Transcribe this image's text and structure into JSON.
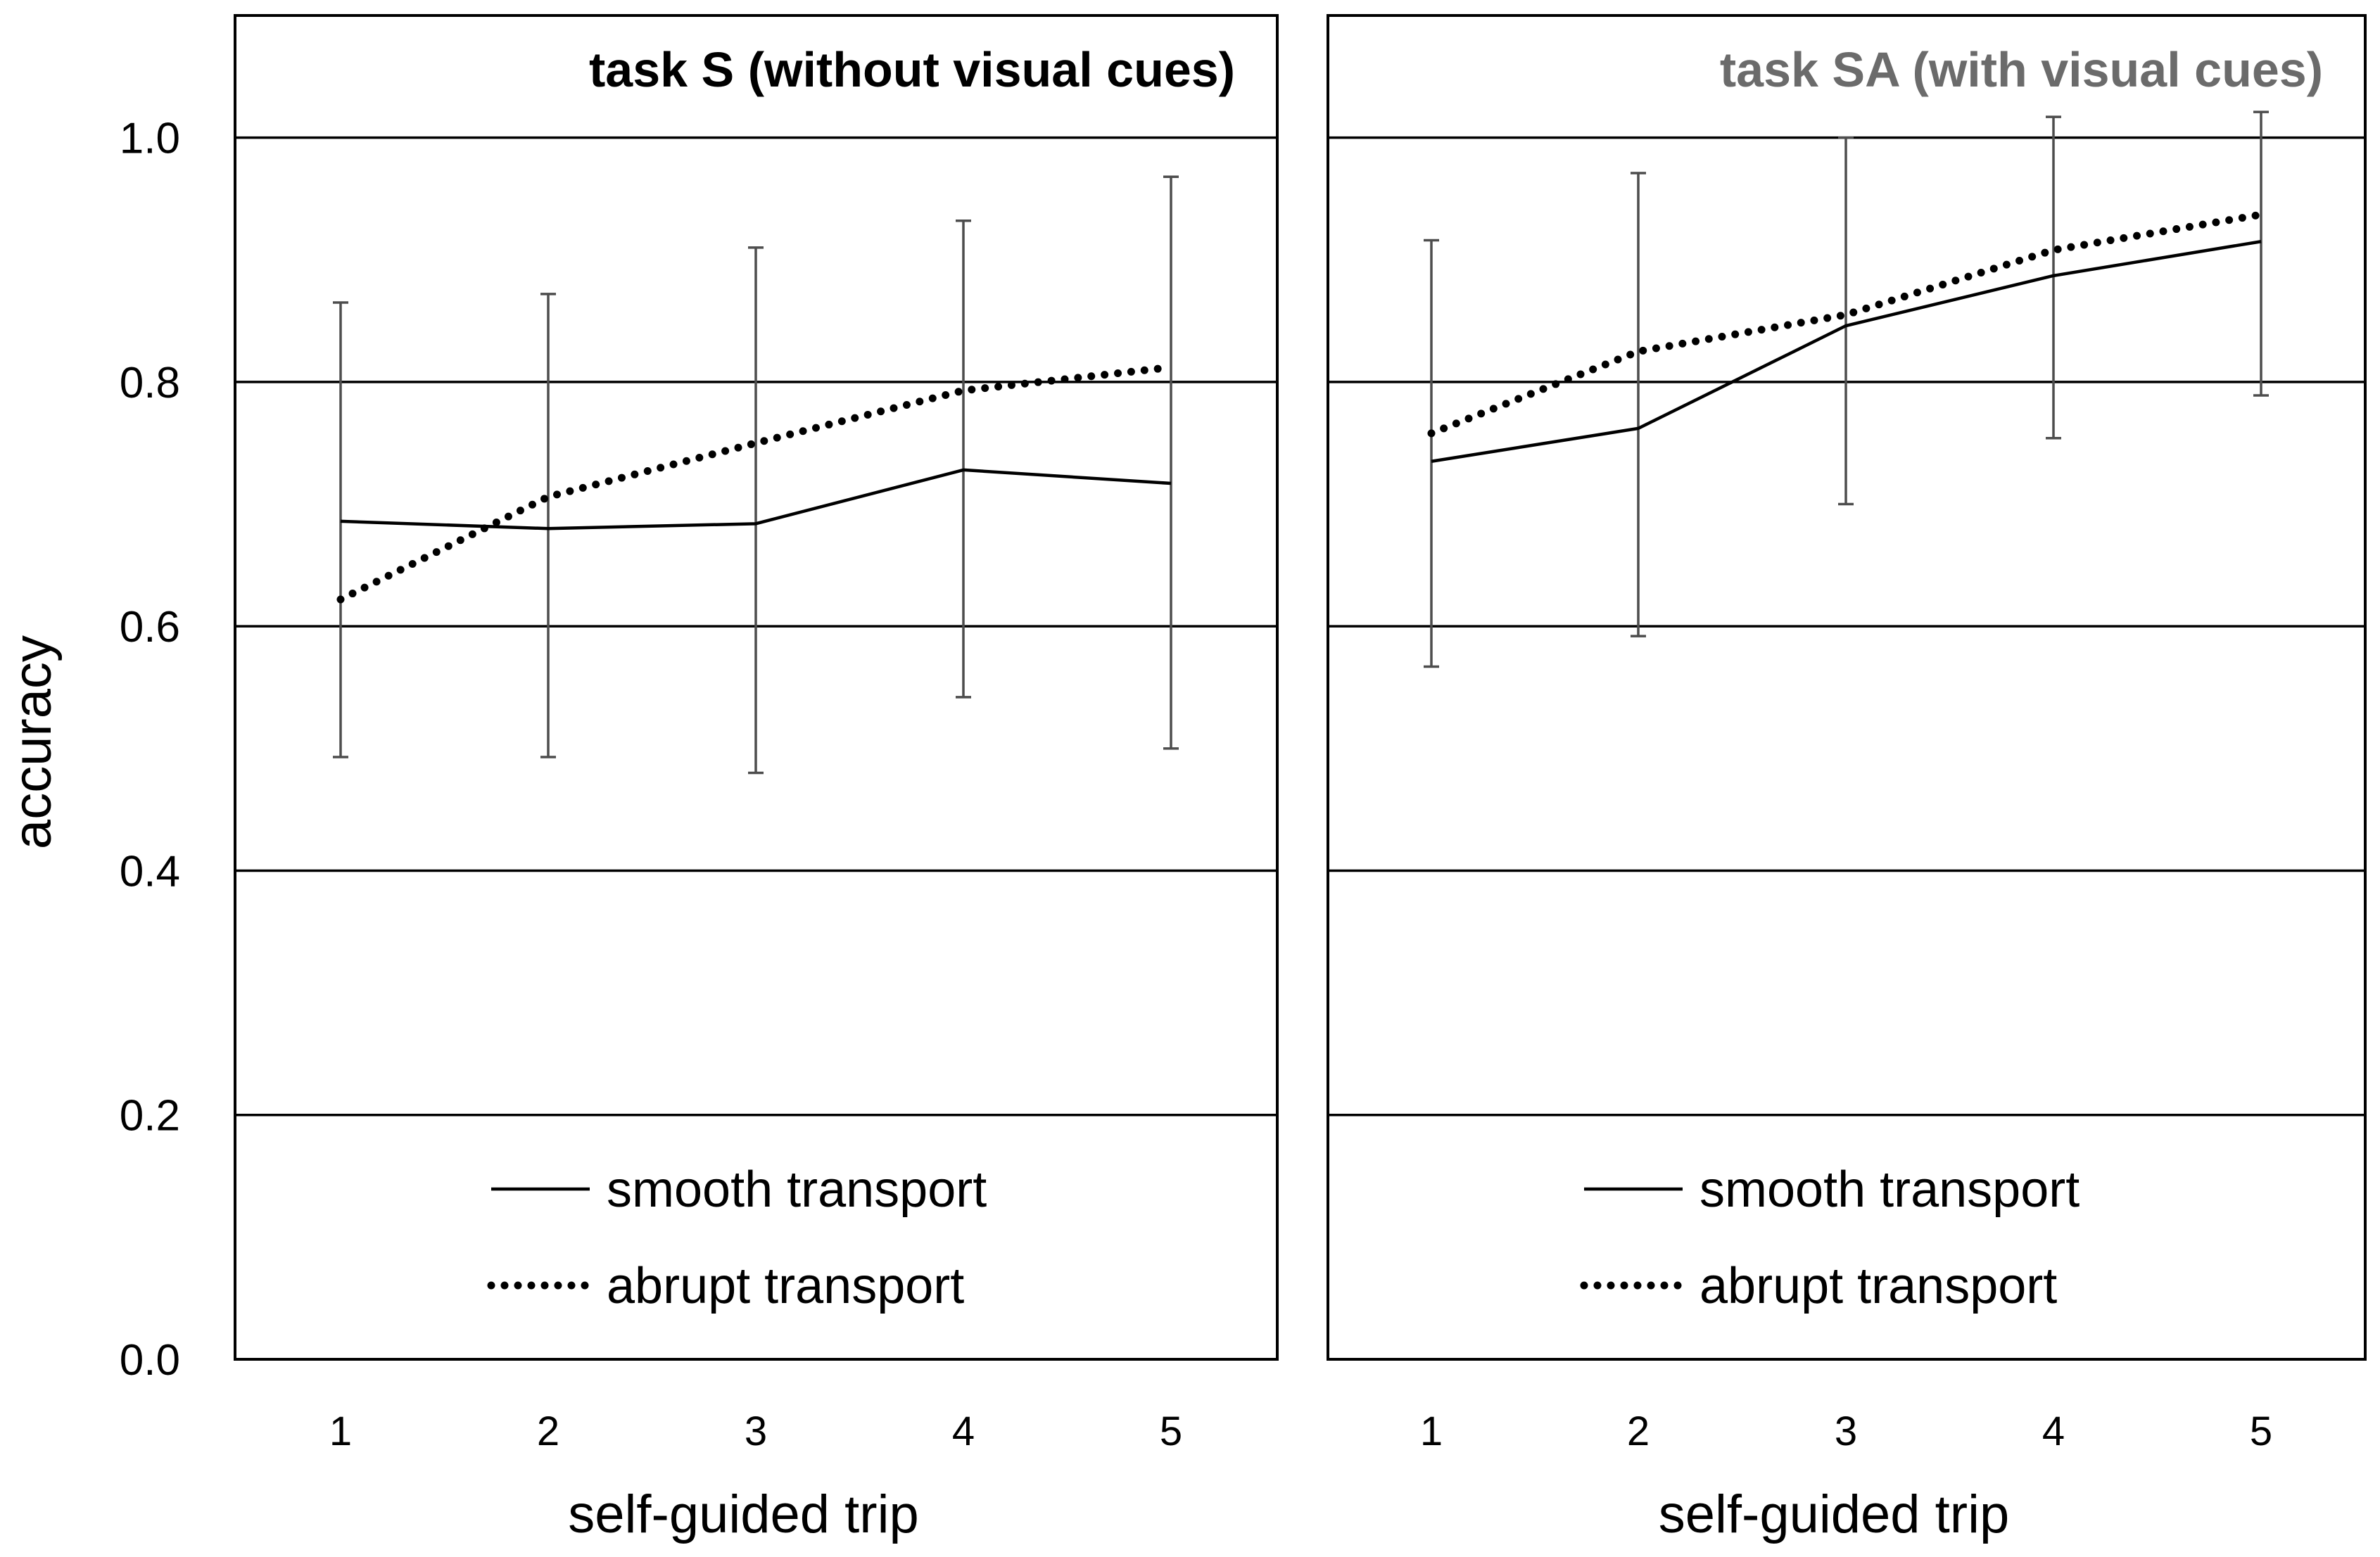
{
  "chart_data": [
    {
      "type": "line",
      "title": "task S (without visual cues)",
      "title_color": "#000000",
      "xlabel": "self-guided trip",
      "ylabel": "accuracy",
      "x": [
        1,
        2,
        3,
        4,
        5
      ],
      "x_tick_labels": [
        "1",
        "2",
        "3",
        "4",
        "5"
      ],
      "ylim": [
        0.0,
        1.1
      ],
      "y_ticks": [
        0.0,
        0.2,
        0.4,
        0.6,
        0.8,
        1.0
      ],
      "y_tick_labels": [
        "0.0",
        "0.2",
        "0.4",
        "0.6",
        "0.8",
        "1.0"
      ],
      "grid": "horizontal",
      "legend_position": "bottom-center",
      "series": [
        {
          "name": "smooth transport",
          "style": "solid",
          "values": [
            0.686,
            0.68,
            0.684,
            0.728,
            0.717
          ],
          "error_upper": [
            0.865,
            0.872,
            0.91,
            0.932,
            0.968
          ],
          "error_lower": [
            0.493,
            0.493,
            0.48,
            0.542,
            0.5
          ]
        },
        {
          "name": "abrupt transport",
          "style": "dotted",
          "values": [
            0.622,
            0.706,
            0.75,
            0.793,
            0.812
          ]
        }
      ]
    },
    {
      "type": "line",
      "title": "task SA (with visual cues)",
      "title_color": "#6b6b6b",
      "xlabel": "self-guided trip",
      "x": [
        1,
        2,
        3,
        4,
        5
      ],
      "x_tick_labels": [
        "1",
        "2",
        "3",
        "4",
        "5"
      ],
      "ylim": [
        0.0,
        1.1
      ],
      "y_ticks": [
        0.0,
        0.2,
        0.4,
        0.6,
        0.8,
        1.0
      ],
      "grid": "horizontal",
      "legend_position": "bottom-center",
      "series": [
        {
          "name": "smooth transport",
          "style": "solid",
          "values": [
            0.735,
            0.762,
            0.846,
            0.887,
            0.915
          ],
          "error_upper": [
            0.916,
            0.971,
            1.0,
            1.017,
            1.021
          ],
          "error_lower": [
            0.567,
            0.592,
            0.7,
            0.754,
            0.789
          ]
        },
        {
          "name": "abrupt transport",
          "style": "dotted",
          "values": [
            0.758,
            0.825,
            0.855,
            0.908,
            0.937
          ]
        }
      ]
    }
  ]
}
